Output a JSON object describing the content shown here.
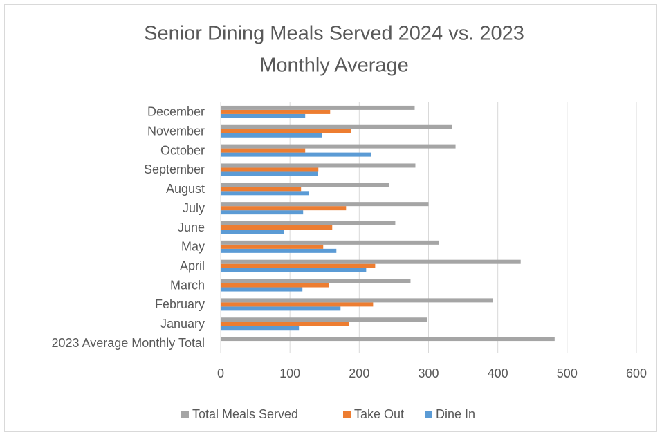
{
  "chart_data": {
    "type": "bar",
    "orientation": "horizontal",
    "title": [
      "Senior Dining Meals Served 2024 vs. 2023",
      "Monthly Average"
    ],
    "categories": [
      "2023 Average Monthly Total",
      "January",
      "February",
      "March",
      "April",
      "May",
      "June",
      "July",
      "August",
      "September",
      "October",
      "November",
      "December"
    ],
    "series": [
      {
        "name": "Dine In",
        "color": "#5b9bd5",
        "values": [
          null,
          113,
          173,
          118,
          210,
          167,
          91,
          119,
          127,
          140,
          217,
          146,
          122
        ]
      },
      {
        "name": "Take Out",
        "color": "#ed7d31",
        "values": [
          null,
          185,
          220,
          156,
          223,
          148,
          161,
          181,
          116,
          141,
          122,
          188,
          158
        ]
      },
      {
        "name": "Total Meals Served",
        "color": "#a5a5a5",
        "values": [
          482,
          298,
          393,
          274,
          433,
          315,
          252,
          300,
          243,
          281,
          339,
          334,
          280
        ]
      }
    ],
    "xlim": [
      0,
      600
    ],
    "xticks": [
      0,
      100,
      200,
      300,
      400,
      500,
      600
    ],
    "grid": true
  }
}
